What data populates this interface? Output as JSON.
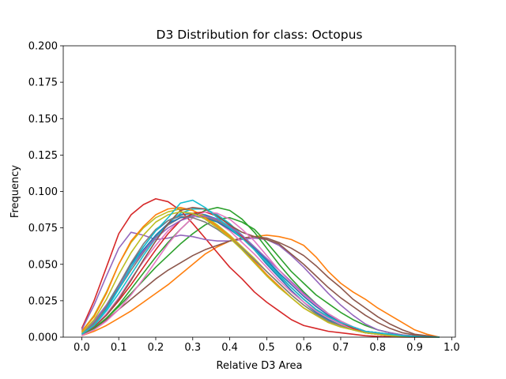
{
  "chart_data": {
    "type": "line",
    "title": "D3 Distribution for class: Octopus",
    "xlabel": "Relative D3 Area",
    "ylabel": "Frequency",
    "xlim": [
      -0.05,
      1.01
    ],
    "ylim": [
      0.0,
      0.2
    ],
    "x_ticks": [
      0.0,
      0.1,
      0.2,
      0.3,
      0.4,
      0.5,
      0.6,
      0.7,
      0.8,
      0.9,
      1.0
    ],
    "x_tick_labels": [
      "0.0",
      "0.1",
      "0.2",
      "0.3",
      "0.4",
      "0.5",
      "0.6",
      "0.7",
      "0.8",
      "0.9",
      "1.0"
    ],
    "y_ticks": [
      0.0,
      0.025,
      0.05,
      0.075,
      0.1,
      0.125,
      0.15,
      0.175,
      0.2
    ],
    "y_tick_labels": [
      "0.000",
      "0.025",
      "0.050",
      "0.075",
      "0.100",
      "0.125",
      "0.150",
      "0.175",
      "0.200"
    ],
    "grid": false,
    "legend": false,
    "x": [
      0.0,
      0.0333,
      0.0667,
      0.1,
      0.1333,
      0.1667,
      0.2,
      0.2333,
      0.2667,
      0.3,
      0.3333,
      0.3667,
      0.4,
      0.4333,
      0.4667,
      0.5,
      0.5333,
      0.5667,
      0.6,
      0.6333,
      0.6667,
      0.7,
      0.7333,
      0.7667,
      0.8,
      0.8333,
      0.8667,
      0.9,
      0.9333,
      0.9667
    ],
    "series": [
      {
        "color": "#1f77b4",
        "values": [
          0.003,
          0.011,
          0.022,
          0.036,
          0.05,
          0.062,
          0.073,
          0.08,
          0.084,
          0.085,
          0.084,
          0.081,
          0.076,
          0.069,
          0.06,
          0.05,
          0.041,
          0.032,
          0.024,
          0.017,
          0.012,
          0.008,
          0.005,
          0.003,
          0.002,
          0.001,
          0.0005,
          0.0002,
          0.0001,
          0.0
        ]
      },
      {
        "color": "#ff7f0e",
        "values": [
          0.001,
          0.004,
          0.008,
          0.013,
          0.018,
          0.024,
          0.03,
          0.036,
          0.043,
          0.05,
          0.057,
          0.062,
          0.066,
          0.068,
          0.069,
          0.07,
          0.069,
          0.067,
          0.063,
          0.055,
          0.045,
          0.037,
          0.031,
          0.026,
          0.02,
          0.015,
          0.01,
          0.005,
          0.002,
          0.0
        ]
      },
      {
        "color": "#2ca02c",
        "values": [
          0.002,
          0.006,
          0.013,
          0.021,
          0.03,
          0.039,
          0.048,
          0.056,
          0.064,
          0.071,
          0.077,
          0.081,
          0.082,
          0.079,
          0.074,
          0.065,
          0.055,
          0.045,
          0.037,
          0.029,
          0.023,
          0.017,
          0.012,
          0.008,
          0.005,
          0.003,
          0.0015,
          0.0007,
          0.0003,
          0.0
        ]
      },
      {
        "color": "#d62728",
        "values": [
          0.006,
          0.025,
          0.048,
          0.071,
          0.084,
          0.091,
          0.095,
          0.093,
          0.087,
          0.078,
          0.068,
          0.058,
          0.048,
          0.04,
          0.031,
          0.024,
          0.018,
          0.012,
          0.008,
          0.006,
          0.004,
          0.003,
          0.002,
          0.001,
          0.0005,
          0.0002,
          0.0001,
          0.0,
          0.0,
          0.0
        ]
      },
      {
        "color": "#9467bd",
        "values": [
          0.005,
          0.022,
          0.042,
          0.061,
          0.072,
          0.07,
          0.067,
          0.068,
          0.07,
          0.069,
          0.067,
          0.066,
          0.066,
          0.067,
          0.068,
          0.067,
          0.063,
          0.056,
          0.048,
          0.039,
          0.03,
          0.022,
          0.015,
          0.009,
          0.005,
          0.003,
          0.0015,
          0.0007,
          0.0003,
          0.0
        ]
      },
      {
        "color": "#8c564b",
        "values": [
          0.002,
          0.006,
          0.012,
          0.019,
          0.026,
          0.033,
          0.04,
          0.046,
          0.051,
          0.056,
          0.06,
          0.063,
          0.066,
          0.068,
          0.069,
          0.068,
          0.065,
          0.061,
          0.056,
          0.049,
          0.041,
          0.034,
          0.026,
          0.02,
          0.014,
          0.009,
          0.005,
          0.002,
          0.001,
          0.0
        ]
      },
      {
        "color": "#e377c2",
        "values": [
          0.002,
          0.007,
          0.016,
          0.027,
          0.04,
          0.052,
          0.063,
          0.073,
          0.08,
          0.083,
          0.083,
          0.079,
          0.073,
          0.065,
          0.057,
          0.048,
          0.039,
          0.031,
          0.024,
          0.018,
          0.013,
          0.009,
          0.006,
          0.004,
          0.002,
          0.001,
          0.0005,
          0.0002,
          0.0001,
          0.0
        ]
      },
      {
        "color": "#7f7f7f",
        "values": [
          0.003,
          0.01,
          0.02,
          0.033,
          0.046,
          0.058,
          0.069,
          0.077,
          0.082,
          0.084,
          0.083,
          0.08,
          0.075,
          0.068,
          0.06,
          0.051,
          0.042,
          0.034,
          0.026,
          0.019,
          0.014,
          0.01,
          0.007,
          0.004,
          0.003,
          0.002,
          0.001,
          0.0005,
          0.0002,
          0.0
        ]
      },
      {
        "color": "#bcbd22",
        "values": [
          0.004,
          0.015,
          0.031,
          0.05,
          0.065,
          0.075,
          0.082,
          0.086,
          0.088,
          0.087,
          0.083,
          0.077,
          0.07,
          0.062,
          0.054,
          0.045,
          0.037,
          0.029,
          0.022,
          0.016,
          0.011,
          0.008,
          0.005,
          0.003,
          0.002,
          0.001,
          0.0005,
          0.0002,
          0.0001,
          0.0
        ]
      },
      {
        "color": "#17becf",
        "values": [
          0.002,
          0.008,
          0.018,
          0.03,
          0.043,
          0.056,
          0.068,
          0.078,
          0.085,
          0.088,
          0.088,
          0.084,
          0.078,
          0.07,
          0.061,
          0.052,
          0.043,
          0.034,
          0.026,
          0.019,
          0.014,
          0.01,
          0.007,
          0.004,
          0.003,
          0.002,
          0.001,
          0.0005,
          0.0002,
          0.0
        ]
      },
      {
        "color": "#1f77b4",
        "values": [
          0.002,
          0.009,
          0.02,
          0.034,
          0.048,
          0.06,
          0.07,
          0.078,
          0.082,
          0.083,
          0.082,
          0.079,
          0.074,
          0.068,
          0.061,
          0.053,
          0.044,
          0.036,
          0.028,
          0.021,
          0.015,
          0.01,
          0.007,
          0.004,
          0.003,
          0.002,
          0.001,
          0.0005,
          0.0002,
          0.0
        ]
      },
      {
        "color": "#ff7f0e",
        "values": [
          0.004,
          0.014,
          0.03,
          0.05,
          0.066,
          0.076,
          0.084,
          0.088,
          0.089,
          0.087,
          0.082,
          0.076,
          0.069,
          0.061,
          0.052,
          0.043,
          0.035,
          0.027,
          0.02,
          0.015,
          0.01,
          0.007,
          0.005,
          0.003,
          0.002,
          0.001,
          0.0005,
          0.0002,
          0.0001,
          0.0
        ]
      },
      {
        "color": "#2ca02c",
        "values": [
          0.002,
          0.006,
          0.013,
          0.022,
          0.033,
          0.044,
          0.055,
          0.065,
          0.074,
          0.082,
          0.087,
          0.089,
          0.087,
          0.081,
          0.072,
          0.061,
          0.05,
          0.04,
          0.031,
          0.023,
          0.016,
          0.011,
          0.007,
          0.004,
          0.003,
          0.002,
          0.001,
          0.0005,
          0.0002,
          0.0
        ]
      },
      {
        "color": "#d62728",
        "values": [
          0.002,
          0.007,
          0.015,
          0.025,
          0.036,
          0.048,
          0.06,
          0.071,
          0.08,
          0.085,
          0.086,
          0.083,
          0.077,
          0.069,
          0.06,
          0.051,
          0.042,
          0.034,
          0.026,
          0.019,
          0.014,
          0.01,
          0.006,
          0.004,
          0.002,
          0.001,
          0.0005,
          0.0002,
          0.0001,
          0.0
        ]
      },
      {
        "color": "#9467bd",
        "values": [
          0.003,
          0.011,
          0.022,
          0.035,
          0.048,
          0.059,
          0.068,
          0.075,
          0.08,
          0.083,
          0.083,
          0.081,
          0.076,
          0.07,
          0.062,
          0.054,
          0.046,
          0.038,
          0.03,
          0.023,
          0.016,
          0.011,
          0.007,
          0.004,
          0.003,
          0.002,
          0.001,
          0.0005,
          0.0002,
          0.0
        ]
      },
      {
        "color": "#8c564b",
        "values": [
          0.002,
          0.007,
          0.015,
          0.026,
          0.039,
          0.053,
          0.066,
          0.078,
          0.087,
          0.089,
          0.088,
          0.083,
          0.077,
          0.072,
          0.069,
          0.067,
          0.064,
          0.057,
          0.05,
          0.042,
          0.034,
          0.027,
          0.021,
          0.015,
          0.01,
          0.006,
          0.003,
          0.0015,
          0.0005,
          0.0
        ]
      },
      {
        "color": "#e377c2",
        "values": [
          0.001,
          0.005,
          0.011,
          0.019,
          0.029,
          0.04,
          0.052,
          0.064,
          0.074,
          0.082,
          0.086,
          0.085,
          0.081,
          0.074,
          0.066,
          0.056,
          0.046,
          0.037,
          0.029,
          0.022,
          0.016,
          0.011,
          0.007,
          0.004,
          0.002,
          0.001,
          0.0005,
          0.0002,
          0.0001,
          0.0
        ]
      },
      {
        "color": "#7f7f7f",
        "values": [
          0.002,
          0.009,
          0.021,
          0.036,
          0.051,
          0.064,
          0.074,
          0.08,
          0.083,
          0.082,
          0.079,
          0.074,
          0.068,
          0.061,
          0.053,
          0.045,
          0.037,
          0.029,
          0.022,
          0.016,
          0.011,
          0.008,
          0.005,
          0.003,
          0.002,
          0.001,
          0.0005,
          0.0002,
          0.0001,
          0.0
        ]
      },
      {
        "color": "#bcbd22",
        "values": [
          0.003,
          0.012,
          0.026,
          0.043,
          0.058,
          0.07,
          0.079,
          0.084,
          0.086,
          0.085,
          0.081,
          0.075,
          0.068,
          0.06,
          0.051,
          0.042,
          0.034,
          0.027,
          0.02,
          0.015,
          0.01,
          0.007,
          0.005,
          0.003,
          0.002,
          0.001,
          0.0005,
          0.0002,
          0.0001,
          0.0
        ]
      },
      {
        "color": "#17becf",
        "values": [
          0.002,
          0.008,
          0.019,
          0.033,
          0.048,
          0.062,
          0.073,
          0.082,
          0.092,
          0.094,
          0.089,
          0.082,
          0.075,
          0.068,
          0.06,
          0.051,
          0.042,
          0.034,
          0.026,
          0.019,
          0.014,
          0.01,
          0.007,
          0.004,
          0.003,
          0.002,
          0.001,
          0.0005,
          0.0002,
          0.0
        ]
      }
    ]
  }
}
